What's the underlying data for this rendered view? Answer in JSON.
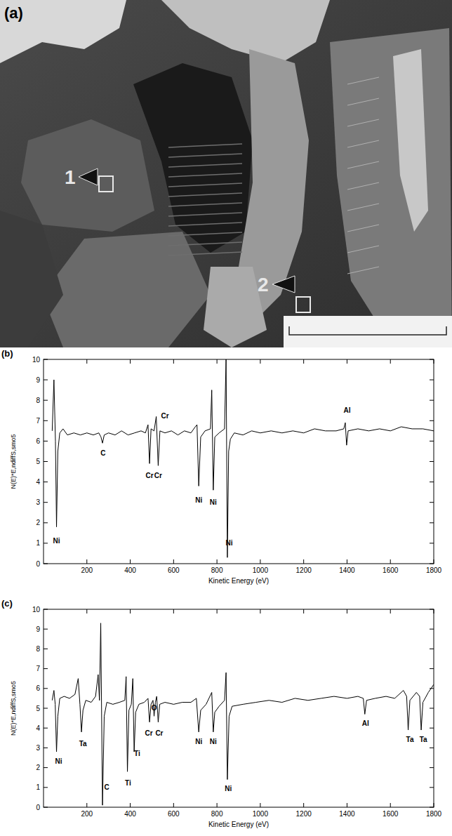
{
  "image": {
    "panel_label": "(a)",
    "markers": [
      "1",
      "2"
    ]
  },
  "chart_data": [
    {
      "type": "line",
      "panel_label": "(b)",
      "x_label": "Kinetic Energy (eV)",
      "y_label": "N(E)*E,ndiffS,smo5",
      "xlim": [
        0,
        1800
      ],
      "ylim": [
        0,
        10
      ],
      "xticks": [
        200,
        400,
        600,
        800,
        1000,
        1200,
        1400,
        1600,
        1800
      ],
      "yticks": [
        0,
        1,
        2,
        3,
        4,
        5,
        6,
        7,
        8,
        9,
        10
      ],
      "grid": false,
      "x": [
        40,
        48,
        55,
        60,
        66,
        75,
        90,
        110,
        140,
        170,
        200,
        230,
        255,
        265,
        272,
        280,
        300,
        330,
        360,
        390,
        420,
        450,
        470,
        482,
        489,
        496,
        510,
        520,
        529,
        537,
        560,
        590,
        620,
        650,
        680,
        700,
        708,
        716,
        725,
        745,
        770,
        776,
        783,
        790,
        810,
        835,
        842,
        848,
        854,
        862,
        880,
        920,
        960,
        1000,
        1050,
        1100,
        1150,
        1200,
        1250,
        1300,
        1350,
        1385,
        1392,
        1398,
        1405,
        1450,
        1500,
        1550,
        1600,
        1650,
        1700,
        1750,
        1800
      ],
      "series": [
        {
          "color": "#000000",
          "values": [
            6.5,
            9.0,
            6.0,
            1.8,
            5.5,
            6.4,
            6.6,
            6.3,
            6.4,
            6.3,
            6.4,
            6.3,
            6.4,
            6.2,
            5.9,
            6.3,
            6.4,
            6.3,
            6.5,
            6.3,
            6.4,
            6.5,
            6.4,
            6.8,
            4.9,
            6.6,
            6.5,
            7.2,
            4.8,
            6.5,
            6.4,
            6.5,
            6.3,
            6.5,
            6.4,
            6.7,
            6.8,
            3.8,
            6.2,
            6.5,
            6.6,
            8.5,
            3.6,
            6.2,
            6.4,
            6.6,
            10.0,
            0.3,
            5.5,
            6.1,
            6.4,
            6.3,
            6.5,
            6.4,
            6.5,
            6.4,
            6.5,
            6.4,
            6.6,
            6.5,
            6.5,
            6.6,
            6.9,
            5.8,
            6.5,
            6.6,
            6.5,
            6.6,
            6.5,
            6.7,
            6.6,
            6.6,
            6.5
          ]
        }
      ],
      "annotations": [
        {
          "text": "Ni",
          "x": 60,
          "y": 1.0
        },
        {
          "text": "C",
          "x": 275,
          "y": 5.3
        },
        {
          "text": "Cr",
          "x": 489,
          "y": 4.2
        },
        {
          "text": "Cr",
          "x": 529,
          "y": 4.2
        },
        {
          "text": "Cr",
          "x": 560,
          "y": 7.1
        },
        {
          "text": "Ni",
          "x": 716,
          "y": 3.0
        },
        {
          "text": "Ni",
          "x": 783,
          "y": 2.9
        },
        {
          "text": "Ni",
          "x": 856,
          "y": 0.9
        },
        {
          "text": "Al",
          "x": 1400,
          "y": 7.4
        }
      ]
    },
    {
      "type": "line",
      "panel_label": "(c)",
      "x_label": "Kinetic Energy (eV)",
      "y_label": "N(E)*E,ndiffS,smo5",
      "xlim": [
        0,
        1800
      ],
      "ylim": [
        0,
        10
      ],
      "xticks": [
        200,
        400,
        600,
        800,
        1000,
        1200,
        1400,
        1600,
        1800
      ],
      "yticks": [
        0,
        1,
        2,
        3,
        4,
        5,
        6,
        7,
        8,
        9,
        10
      ],
      "grid": false,
      "x": [
        40,
        48,
        54,
        60,
        66,
        75,
        95,
        120,
        145,
        160,
        168,
        175,
        182,
        195,
        220,
        240,
        252,
        258,
        264,
        272,
        280,
        292,
        320,
        350,
        375,
        381,
        387,
        394,
        405,
        412,
        418,
        425,
        440,
        465,
        482,
        489,
        496,
        505,
        510,
        516,
        522,
        529,
        536,
        560,
        600,
        640,
        680,
        705,
        716,
        725,
        750,
        776,
        783,
        790,
        810,
        835,
        842,
        848,
        856,
        870,
        920,
        980,
        1040,
        1100,
        1160,
        1220,
        1280,
        1340,
        1400,
        1450,
        1475,
        1482,
        1490,
        1530,
        1580,
        1620,
        1660,
        1675,
        1682,
        1690,
        1720,
        1735,
        1742,
        1750,
        1775,
        1800
      ],
      "series": [
        {
          "color": "#000000",
          "values": [
            5.4,
            5.9,
            5.2,
            2.8,
            4.6,
            5.5,
            5.6,
            5.5,
            5.7,
            6.5,
            5.2,
            3.8,
            4.9,
            5.4,
            5.3,
            5.6,
            6.7,
            5.4,
            9.3,
            0.1,
            4.6,
            5.3,
            5.2,
            5.3,
            5.4,
            6.6,
            1.8,
            4.9,
            5.2,
            6.5,
            2.8,
            4.8,
            5.2,
            5.3,
            5.5,
            4.3,
            5.2,
            5.4,
            4.6,
            5.3,
            5.6,
            4.3,
            5.2,
            5.3,
            5.2,
            5.3,
            5.3,
            5.5,
            3.8,
            4.9,
            5.2,
            5.8,
            3.8,
            4.8,
            5.1,
            5.4,
            6.8,
            1.4,
            4.6,
            5.1,
            5.2,
            5.3,
            5.4,
            5.3,
            5.5,
            5.4,
            5.5,
            5.6,
            5.5,
            5.6,
            5.5,
            4.7,
            5.4,
            5.5,
            5.6,
            5.5,
            5.9,
            5.6,
            3.9,
            5.4,
            5.8,
            5.6,
            3.9,
            5.3,
            5.8,
            6.2
          ]
        }
      ],
      "annotations": [
        {
          "text": "Ni",
          "x": 70,
          "y": 2.2
        },
        {
          "text": "Ta",
          "x": 182,
          "y": 3.1
        },
        {
          "text": "C",
          "x": 292,
          "y": 0.9
        },
        {
          "text": "Ti",
          "x": 390,
          "y": 1.1
        },
        {
          "text": "Ti",
          "x": 432,
          "y": 2.6
        },
        {
          "text": "Cr",
          "x": 486,
          "y": 3.6
        },
        {
          "text": "O",
          "x": 510,
          "y": 4.9
        },
        {
          "text": "Cr",
          "x": 534,
          "y": 3.6
        },
        {
          "text": "Ni",
          "x": 716,
          "y": 3.2
        },
        {
          "text": "Ni",
          "x": 783,
          "y": 3.2
        },
        {
          "text": "Ni",
          "x": 852,
          "y": 0.8
        },
        {
          "text": "Al",
          "x": 1485,
          "y": 4.1
        },
        {
          "text": "Ta",
          "x": 1690,
          "y": 3.3
        },
        {
          "text": "Ta",
          "x": 1752,
          "y": 3.3
        }
      ]
    }
  ]
}
